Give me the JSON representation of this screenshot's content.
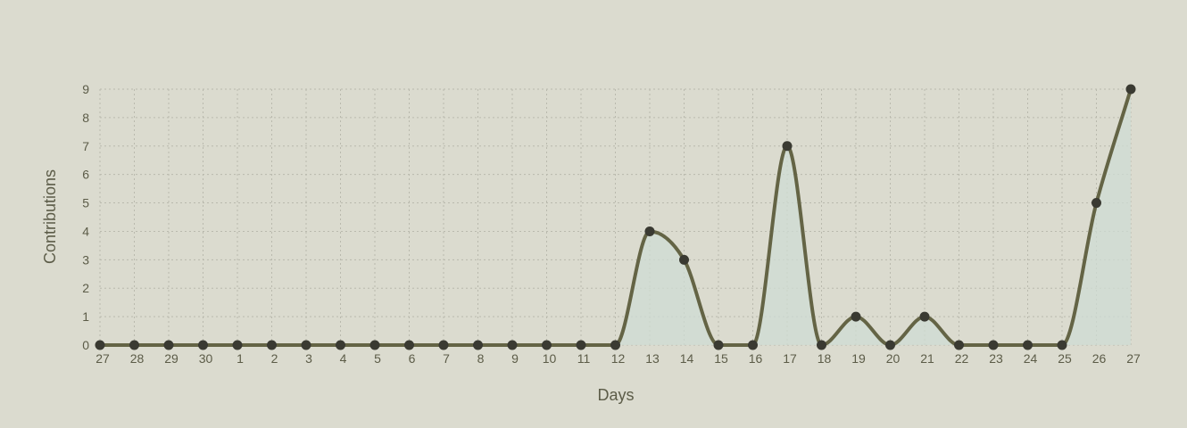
{
  "chart_data": {
    "type": "area",
    "title": "",
    "xlabel": "Days",
    "ylabel": "Contributions",
    "categories": [
      "27",
      "28",
      "29",
      "30",
      "1",
      "2",
      "3",
      "4",
      "5",
      "6",
      "7",
      "8",
      "9",
      "10",
      "11",
      "12",
      "13",
      "14",
      "15",
      "16",
      "17",
      "18",
      "19",
      "20",
      "21",
      "22",
      "23",
      "24",
      "25",
      "26",
      "27"
    ],
    "series": [
      {
        "values": [
          0,
          0,
          0,
          0,
          0,
          0,
          0,
          0,
          0,
          0,
          0,
          0,
          0,
          0,
          0,
          0,
          4,
          3,
          0,
          0,
          7,
          0,
          1,
          0,
          1,
          0,
          0,
          0,
          0,
          5,
          9
        ]
      }
    ],
    "yticks": [
      "0",
      "1",
      "2",
      "3",
      "4",
      "5",
      "6",
      "7",
      "8",
      "9"
    ],
    "ylim": [
      0,
      9
    ],
    "grid": true,
    "colors": {
      "background": "#dbdbcf",
      "line": "#646445",
      "fill": "#cfdcd4",
      "point": "#3a3a32",
      "grid": "#b9b9ad",
      "text": "#5c5c48"
    }
  }
}
